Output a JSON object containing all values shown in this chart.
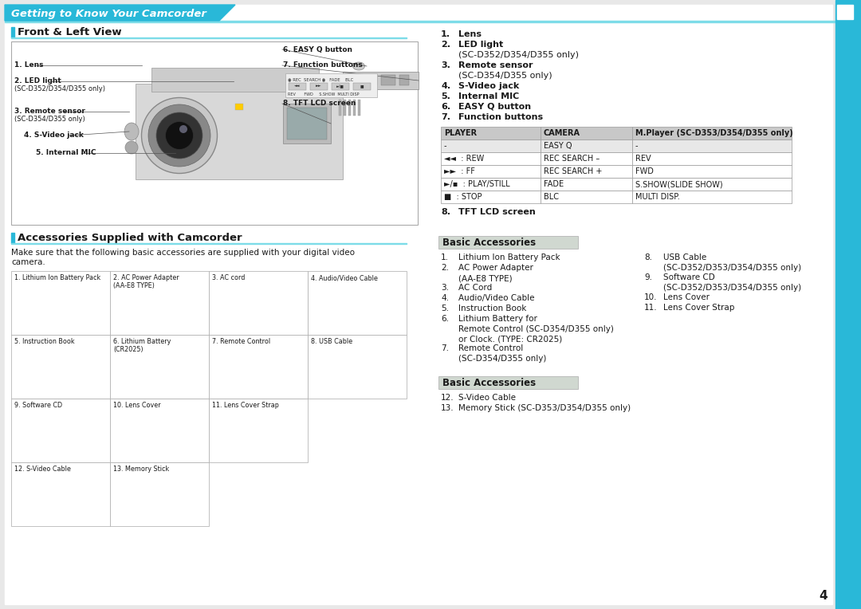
{
  "page_bg": "#e8e8e8",
  "content_bg": "#ffffff",
  "cyan_color": "#29b8d8",
  "cyan_light": "#7ddce8",
  "dark_text": "#1a1a1a",
  "header_text": "Getting to Know Your Camcorder",
  "section1_title": "Front & Left View",
  "section2_title": "Accessories Supplied with Camcorder",
  "section2_subtitle": "Make sure that the following basic accessories are supplied with your digital video\ncamera.",
  "right_items": [
    [
      "1.",
      "Lens",
      ""
    ],
    [
      "2.",
      "LED light",
      "(SC-D352/D354/D355 only)"
    ],
    [
      "3.",
      "Remote sensor",
      "(SC-D354/D355 only)"
    ],
    [
      "4.",
      "S-Video jack",
      ""
    ],
    [
      "5.",
      "Internal MIC",
      ""
    ],
    [
      "6.",
      "EASY Q button",
      ""
    ],
    [
      "7.",
      "Function buttons",
      ""
    ]
  ],
  "table_headers": [
    "PLAYER",
    "CAMERA",
    "M.Player (SC-D353/D354/D355 only)"
  ],
  "table_row0": [
    "-",
    "EASY Q",
    "-"
  ],
  "table_row1": [
    "◄◄  : REW",
    "REC SEARCH –",
    "REV"
  ],
  "table_row2": [
    "►►  : FF",
    "REC SEARCH +",
    "FWD"
  ],
  "table_row3": [
    "►/▪  : PLAY/STILL",
    "FADE",
    "S.SHOW(SLIDE SHOW)"
  ],
  "table_row4": [
    "■  : STOP",
    "BLC",
    "MULTI DISP."
  ],
  "item8_label": "8.   TFT LCD screen",
  "basic_acc_title": "Basic Accessories",
  "basic_acc_items_left": [
    [
      "1.",
      "Lithium Ion Battery Pack",
      ""
    ],
    [
      "2.",
      "AC Power Adapter",
      "(AA-E8 TYPE)"
    ],
    [
      "3.",
      "AC Cord",
      ""
    ],
    [
      "4.",
      "Audio/Video Cable",
      ""
    ],
    [
      "5.",
      "Instruction Book",
      ""
    ],
    [
      "6.",
      "Lithium Battery for",
      "Remote Control (SC-D354/D355 only)\nor Clock. (TYPE: CR2025)"
    ],
    [
      "7.",
      "Remote Control",
      "(SC-D354/D355 only)"
    ]
  ],
  "basic_acc_items_right": [
    [
      "8.",
      "USB Cable",
      "(SC-D352/D353/D354/D355 only)"
    ],
    [
      "9.",
      "Software CD",
      "(SC-D352/D353/D354/D355 only)"
    ],
    [
      "10.",
      "Lens Cover",
      ""
    ],
    [
      "11.",
      "Lens Cover Strap",
      ""
    ]
  ],
  "basic_acc2_title": "Basic Accessories",
  "basic_acc2_items": [
    [
      "12.",
      "S-Video Cable",
      ""
    ],
    [
      "13.",
      "Memory Stick (SC-D353/D354/D355 only)",
      ""
    ]
  ],
  "page_number": "4",
  "grid_items": [
    [
      "1. Lithium Ion Battery Pack",
      "2. AC Power Adapter\n(AA-E8 TYPE)",
      "3. AC cord",
      "4. Audio/Video Cable"
    ],
    [
      "5. Instruction Book",
      "6. Lithium Battery\n(CR2025)",
      "7. Remote Control",
      "8. USB Cable"
    ],
    [
      "9. Software CD",
      "10. Lens Cover",
      "11. Lens Cover Strap",
      ""
    ],
    [
      "12. S-Video Cable",
      "13. Memory Stick",
      "",
      ""
    ]
  ]
}
